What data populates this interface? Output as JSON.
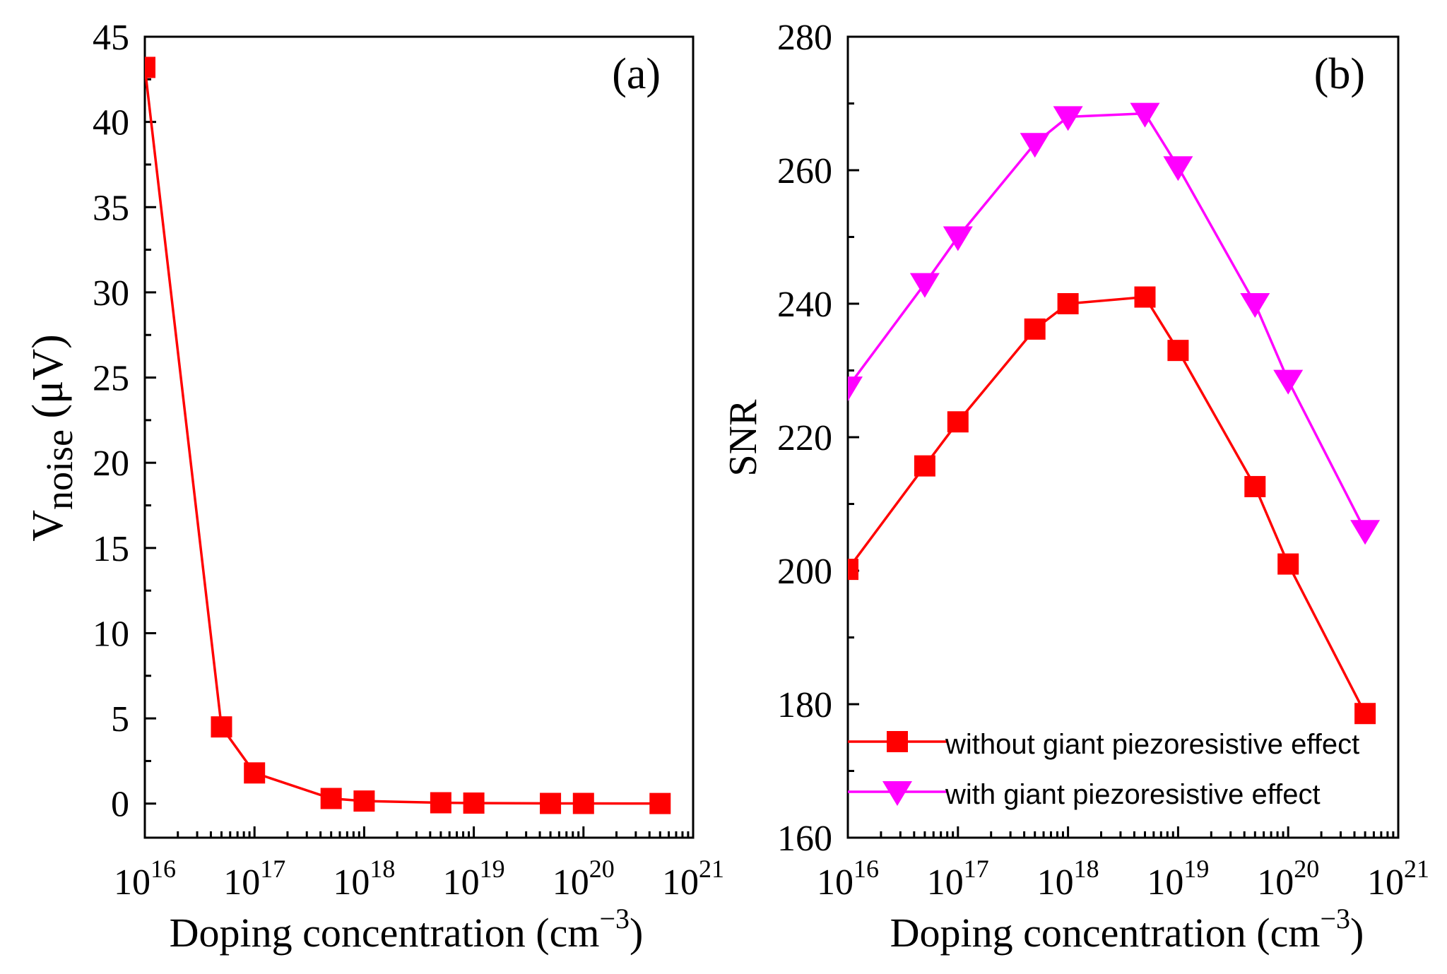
{
  "chart_data": [
    {
      "type": "line",
      "panel_label": "(a)",
      "xscale": "log",
      "xlim": [
        1e+16,
        1e+21
      ],
      "ylim": [
        -2,
        45
      ],
      "xlabel_main": "Doping concentration (cm",
      "xlabel_sup": "−3",
      "xlabel_end": ")",
      "ylabel_main": "V",
      "ylabel_sub": "noise",
      "ylabel_unit": " (μV)",
      "xtick_base": "10",
      "xtick_exponents": [
        "16",
        "17",
        "18",
        "19",
        "20",
        "21"
      ],
      "yticks": [
        "0",
        "5",
        "10",
        "15",
        "20",
        "25",
        "30",
        "35",
        "40",
        "45"
      ],
      "x": [
        1e+16,
        5e+16,
        1e+17,
        5e+17,
        1e+18,
        5e+18,
        1e+19,
        5e+19,
        1e+20,
        5e+20
      ],
      "series": [
        {
          "name": "Vnoise",
          "color": "#ff0000",
          "marker": "square",
          "values": [
            43.2,
            4.5,
            1.8,
            0.3,
            0.15,
            0.05,
            0.03,
            0.01,
            0.01,
            0.005
          ]
        }
      ]
    },
    {
      "type": "line",
      "panel_label": "(b)",
      "xscale": "log",
      "xlim": [
        1e+16,
        1e+21
      ],
      "ylim": [
        160,
        280
      ],
      "xlabel_main": "Doping concentration (cm",
      "xlabel_sup": "−3",
      "xlabel_end": ")",
      "ylabel": "SNR",
      "xtick_base": "10",
      "xtick_exponents": [
        "16",
        "17",
        "18",
        "19",
        "20",
        "21"
      ],
      "yticks": [
        "160",
        "180",
        "200",
        "220",
        "240",
        "260",
        "280"
      ],
      "legend_position": "bottom-left",
      "x": [
        1e+16,
        5e+16,
        1e+17,
        5e+17,
        1e+18,
        5e+18,
        1e+19,
        5e+19,
        1e+20,
        5e+20
      ],
      "series": [
        {
          "name": "without giant piezoresistive effect",
          "color": "#ff0000",
          "marker": "square",
          "values": [
            200.2,
            215.7,
            222.3,
            236.2,
            240.0,
            241.0,
            233.0,
            212.6,
            201.0,
            178.6
          ]
        },
        {
          "name": "with giant piezoresistive effect",
          "color": "#ff00ff",
          "marker": "triangle-down",
          "values": [
            227.5,
            243.0,
            250.0,
            264.0,
            268.0,
            268.5,
            260.5,
            240.0,
            228.5,
            206.0
          ]
        }
      ]
    }
  ]
}
